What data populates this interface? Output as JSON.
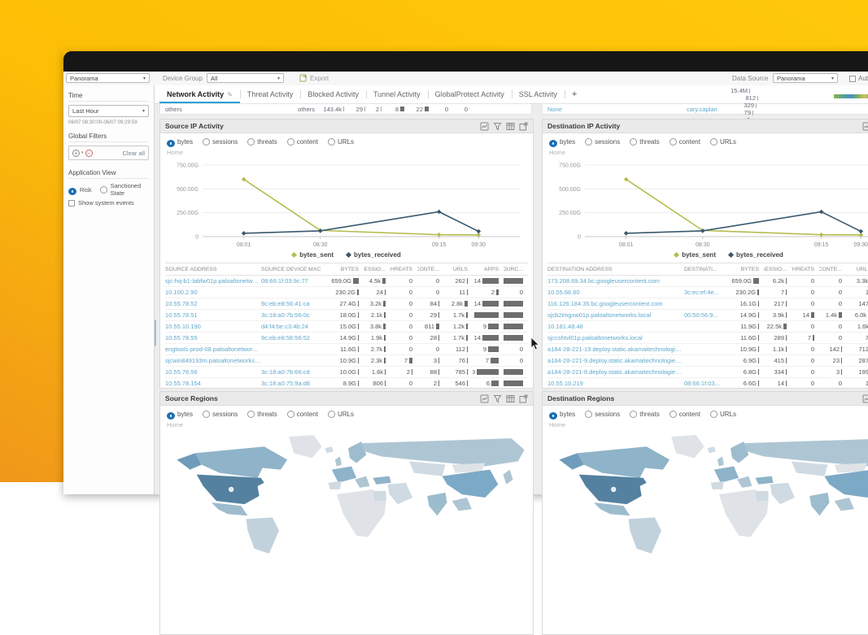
{
  "colors": {
    "brand_yellow": "#fcbe06",
    "brand_orange": "#f0971a",
    "accent_blue": "#2ba0d8",
    "link_blue": "#5fa8cd",
    "radio_blue": "#1c6fb2",
    "bytes_sent": "#b5bd4f",
    "bytes_received": "#39586e",
    "bar_gray": "#6e6e6e"
  },
  "toolbar": {
    "context_select": "Panorama",
    "device_group_label": "Device Group",
    "device_group_value": "All",
    "export_label": "Export",
    "data_source_label": "Data Source",
    "data_source_value": "Panorama",
    "auto_refresh_label": "Auto"
  },
  "sidebar": {
    "time_label": "Time",
    "time_value": "Last Hour",
    "time_range": "06/07 08:30:00-06/07 09:29:59",
    "global_filters_label": "Global Filters",
    "clear_all_label": "Clear all",
    "application_view_label": "Application View",
    "risk_label": "Risk",
    "sanctioned_label": "Sanctioned State",
    "show_system_events_label": "Show system events"
  },
  "tabs": {
    "items": [
      "Network Activity",
      "Threat Activity",
      "Blocked Activity",
      "Tunnel Activity",
      "GlobalProtect Activity",
      "SSL Activity"
    ],
    "active": "Network Activity",
    "add_tab_label": "+"
  },
  "metric_options": [
    "bytes",
    "sessions",
    "threats",
    "content",
    "URLs"
  ],
  "metric_selected": "bytes",
  "breadcrumb": "Home",
  "overflow_rows": {
    "left": {
      "label": "others",
      "cells": [
        {
          "v": "others",
          "bar": 0
        },
        {
          "v": "143.4k",
          "bar": 1
        },
        {
          "v": "29",
          "bar": 1
        },
        {
          "v": "2",
          "bar": 1
        },
        {
          "v": "8",
          "bar": 5
        },
        {
          "v": "22",
          "bar": 5
        },
        {
          "v": "0",
          "bar": 0
        },
        {
          "v": "0",
          "bar": 0
        }
      ]
    },
    "right": {
      "label": "None",
      "user": "cary.caplan",
      "cells": [
        {
          "v": "15.4M",
          "bar": 1
        },
        {
          "v": "812",
          "bar": 1
        },
        {
          "v": "329",
          "bar": 1
        },
        {
          "v": "79",
          "bar": 1
        },
        {
          "v": "0",
          "bar": 0
        },
        {
          "v": "4",
          "bar": 1
        }
      ]
    }
  },
  "panels": {
    "source_ip": {
      "title": "Source IP Activity",
      "table": {
        "headers": [
          "SOURCE ADDRESS",
          "SOURCE DEVICE MAC",
          "BYTES",
          "SESSIO...",
          "THREATS",
          "CONTE...",
          "URLS",
          "APPS",
          "SOURC..."
        ],
        "rows": [
          [
            "sjc-hq-b1-labfw01p.paloaltonetworks.l...",
            "08:66:1f:03:9c:77",
            "659.0G",
            "4.5k",
            "0",
            "0",
            "262",
            "14",
            "1"
          ],
          [
            "10.100.2.90",
            "",
            "230.2G",
            "24",
            "0",
            "0",
            "11",
            "2",
            "0"
          ],
          [
            "10.55.78.52",
            "9c:eb:e8:56:41:ca",
            "27.4G",
            "3.2k",
            "0",
            "84",
            "2.8k",
            "14",
            "1"
          ],
          [
            "10.55.78.51",
            "3c:18:a0:7b:56:0c",
            "18.0G",
            "2.1k",
            "0",
            "29",
            "1.7k",
            "21",
            "1"
          ],
          [
            "10.55.10.190",
            "d4:f4:be:c3:4b:24",
            "15.0G",
            "3.8k",
            "0",
            "811",
            "1.2k",
            "9",
            "1"
          ],
          [
            "10.55.78.55",
            "9c:eb:e8:56:56:52",
            "14.9G",
            "1.9k",
            "0",
            "28",
            "1.7k",
            "14",
            "1"
          ],
          [
            "engtools-prod-08.paloaltonetworks.local",
            "",
            "11.6G",
            "2.7k",
            "0",
            "0",
            "112",
            "9",
            "0"
          ],
          [
            "sjcwin849193m.paloaltonetworks.local",
            "",
            "10.9G",
            "2.3k",
            "7",
            "3",
            "76",
            "7",
            "0"
          ],
          [
            "10.55.76.56",
            "3c:18:a0:7b:66:cd",
            "10.0G",
            "1.6k",
            "2",
            "88",
            "785",
            "19",
            "1"
          ],
          [
            "10.55.78.154",
            "3c:18:a0:75:9a:d8",
            "8.9G",
            "806",
            "0",
            "2",
            "546",
            "6",
            "1"
          ]
        ]
      }
    },
    "dest_ip": {
      "title": "Destination IP Activity",
      "table": {
        "headers": [
          "DESTINATION ADDRESS",
          "DESTINATI...",
          "BYTES",
          "SESSIO...",
          "THREATS",
          "CONTE...",
          "URLS",
          "APPS"
        ],
        "rows": [
          [
            "173.208.69.34.bc.googleusercontent.com",
            "",
            "659.0G",
            "6.2k",
            "0",
            "0",
            "3.3k",
            "2"
          ],
          [
            "10.55.66.60",
            "3c:ec:ef:4e...",
            "230.2G",
            "7",
            "0",
            "0",
            "1",
            "1"
          ],
          [
            "116.126.184.35.bc.googleusercontent.com",
            "",
            "16.1G",
            "217",
            "0",
            "0",
            "147",
            "2"
          ],
          [
            "sjcb2imgvw01p.paloaltonetworks.local",
            "00:50:56:9...",
            "14.9G",
            "3.9k",
            "14",
            "1.4k",
            "6.0k",
            "9"
          ],
          [
            "10.181.48.46",
            "",
            "11.9G",
            "22.5k",
            "0",
            "0",
            "1.6k",
            "3"
          ],
          [
            "sjccshtvl01p.paloaltonetworks.local",
            "",
            "11.6G",
            "289",
            "7",
            "0",
            "7",
            "3"
          ],
          [
            "a184-28-221-19.deploy.static.akamaitechnologies.com",
            "",
            "10.9G",
            "1.1k",
            "0",
            "142",
            "712",
            "5"
          ],
          [
            "a184-28-221-9.deploy.static.akamaitechnologies.com",
            "",
            "6.9G",
            "415",
            "0",
            "23",
            "287",
            "6"
          ],
          [
            "a184-28-221-8.deploy.static.akamaitechnologies.com",
            "",
            "6.8G",
            "334",
            "0",
            "3",
            "199",
            "5"
          ],
          [
            "10.55.10.219",
            "08:66:1f:03...",
            "6.6G",
            "14",
            "0",
            "0",
            "1",
            "3"
          ]
        ]
      }
    },
    "source_regions": {
      "title": "Source Regions"
    },
    "dest_regions": {
      "title": "Destination Regions"
    }
  },
  "chart_data": [
    {
      "panel": "Source IP Activity",
      "type": "line",
      "x": [
        "08:01",
        "08:30",
        "09:15",
        "09:30"
      ],
      "series": [
        {
          "name": "bytes_sent",
          "color": "#b5bd4f",
          "values_gb": [
            600,
            65,
            20,
            18
          ]
        },
        {
          "name": "bytes_received",
          "color": "#39586e",
          "values_gb": [
            35,
            60,
            260,
            55
          ]
        }
      ],
      "ylim": [
        0,
        750
      ],
      "yticks": [
        "750.00G",
        "500.00G",
        "250.00G",
        "0"
      ],
      "grid": true,
      "legend_position": "bottom"
    },
    {
      "panel": "Destination IP Activity",
      "type": "line",
      "x": [
        "08:01",
        "08:30",
        "09:15",
        "09:30"
      ],
      "series": [
        {
          "name": "bytes_sent",
          "color": "#b5bd4f",
          "values_gb": [
            600,
            65,
            20,
            18
          ]
        },
        {
          "name": "bytes_received",
          "color": "#39586e",
          "values_gb": [
            35,
            60,
            260,
            55
          ]
        }
      ],
      "ylim": [
        0,
        750
      ],
      "yticks": [
        "750.00G",
        "500.00G",
        "250.00G",
        "0"
      ],
      "grid": true,
      "legend_position": "bottom"
    },
    {
      "panel": "Source Regions",
      "type": "choropleth",
      "metric": "bytes",
      "note": "World map shaded by traffic volume; United States darkest with marker, Canada/Russia/China medium, most regions light",
      "palette": [
        "#e3e8ec",
        "#cfdae2",
        "#aec5d3",
        "#8fb3c8",
        "#6f9cba",
        "#54819f"
      ]
    },
    {
      "panel": "Destination Regions",
      "type": "choropleth",
      "metric": "bytes",
      "note": "World map shaded by traffic volume; United States darkest with marker, Canada/Russia/China medium, most regions light",
      "palette": [
        "#e3e8ec",
        "#cfdae2",
        "#aec5d3",
        "#8fb3c8",
        "#6f9cba",
        "#54819f"
      ]
    }
  ]
}
